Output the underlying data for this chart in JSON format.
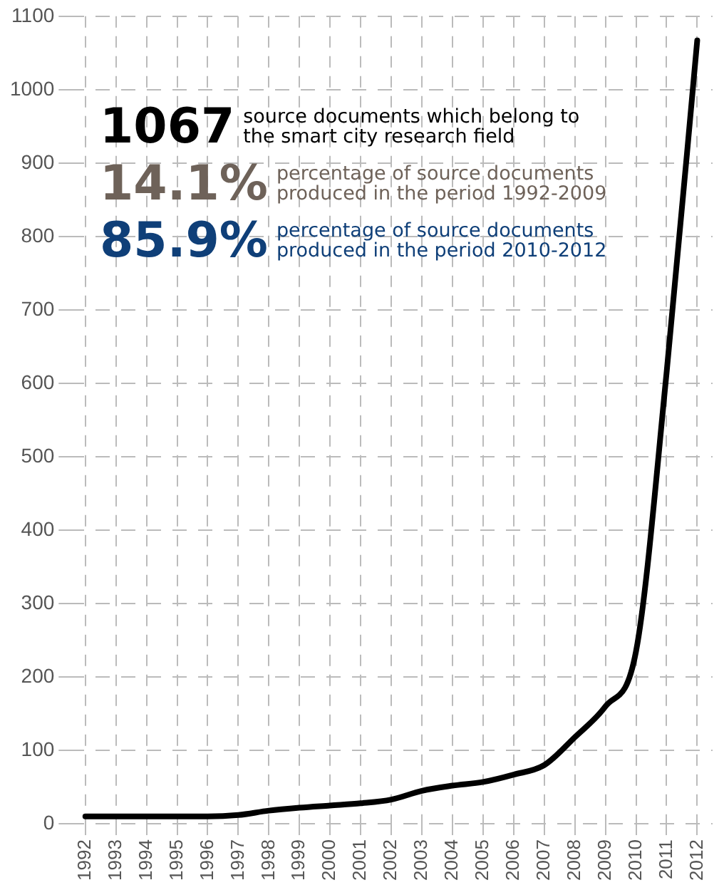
{
  "chart_data": {
    "type": "line",
    "categories": [
      "1992",
      "1993",
      "1994",
      "1995",
      "1996",
      "1997",
      "1998",
      "1999",
      "2000",
      "2001",
      "2002",
      "2003",
      "2004",
      "2005",
      "2006",
      "2007",
      "2008",
      "2009",
      "2010",
      "2011",
      "2012"
    ],
    "series": [
      {
        "color": "#000000",
        "values": [
          10,
          10,
          10,
          10,
          10,
          12,
          18,
          22,
          25,
          28,
          33,
          45,
          52,
          57,
          67,
          80,
          118,
          160,
          235,
          615,
          1067
        ]
      }
    ],
    "ylim": [
      0,
      1100
    ],
    "yticks": [
      0,
      100,
      200,
      300,
      400,
      500,
      600,
      700,
      800,
      900,
      1000,
      1100
    ],
    "grid": true,
    "legend": false,
    "marker": "none",
    "line_style": "solid",
    "annotations": [
      "1067",
      "source documents which belong to the smart city research field",
      "14.1%",
      "percentage of source documents produced in the period 1992-2009",
      "85.9%",
      "percentage of source documents produced in the period 2010-2012"
    ]
  }
}
